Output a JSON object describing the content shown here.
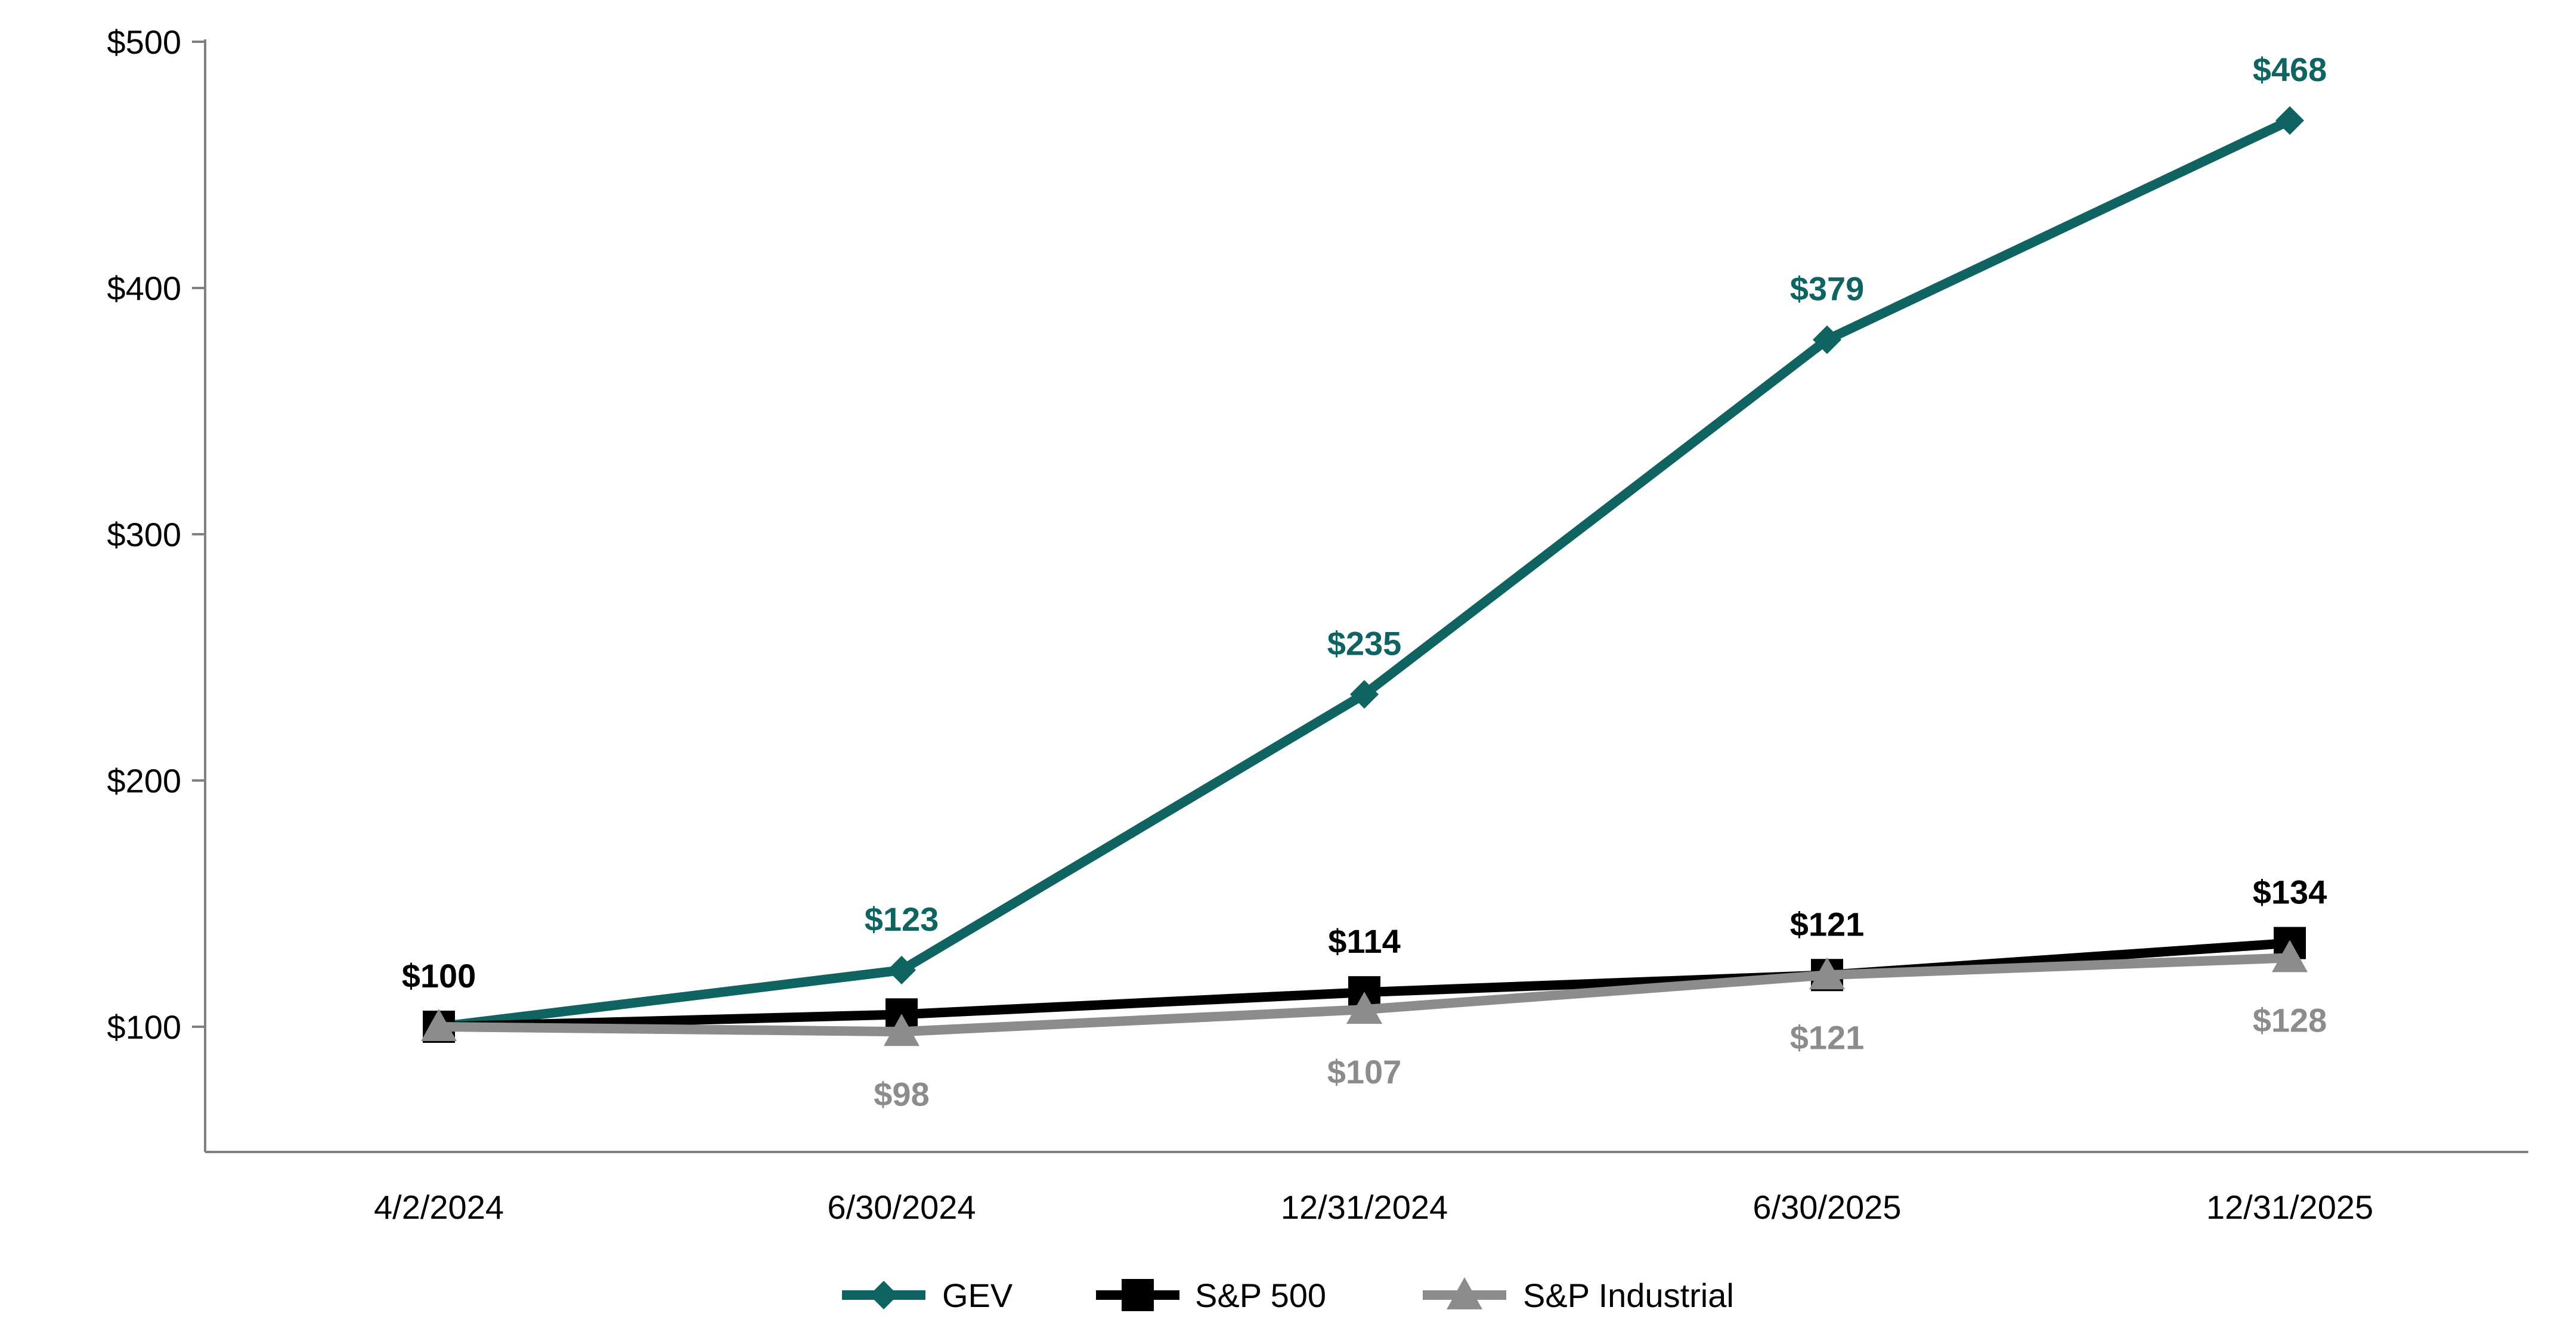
{
  "chart_data": {
    "type": "line",
    "title": "",
    "xlabel": "",
    "ylabel": "",
    "categories": [
      "4/2/2024",
      "6/30/2024",
      "12/31/2024",
      "6/30/2025",
      "12/31/2025"
    ],
    "yticks": [
      "$100",
      "$200",
      "$300",
      "$400",
      "$500"
    ],
    "ylim": [
      52,
      500
    ],
    "grid": false,
    "legend_position": "bottom-center",
    "series": [
      {
        "name": "GEV",
        "color": "#0f6461",
        "marker": "diamond",
        "values": [
          100,
          123,
          235,
          379,
          468
        ],
        "labels": [
          "",
          "$123",
          "$235",
          "$379",
          "$468"
        ],
        "label_position": "above"
      },
      {
        "name": "S&P 500",
        "color": "#000000",
        "marker": "square",
        "values": [
          100,
          105,
          114,
          121,
          134
        ],
        "labels": [
          "$100",
          "",
          "$114",
          "$121",
          "$134"
        ],
        "label_position": "above"
      },
      {
        "name": "S&P Industrial",
        "color": "#8c8c8c",
        "marker": "triangle",
        "values": [
          100,
          98,
          107,
          121,
          128
        ],
        "labels": [
          "",
          "$98",
          "$107",
          "$121",
          "$128"
        ],
        "label_position": "below"
      }
    ]
  }
}
